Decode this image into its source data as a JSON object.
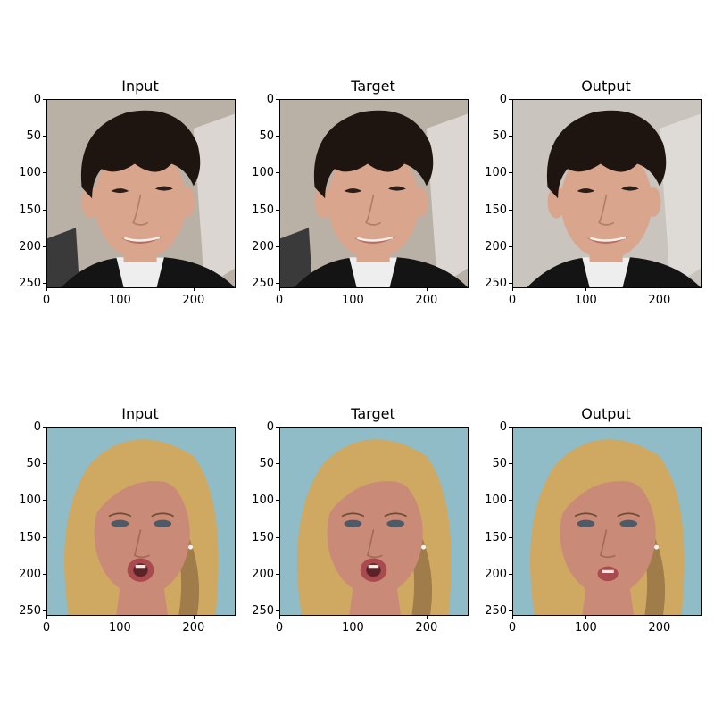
{
  "figure": {
    "rows": [
      {
        "subject": "boy",
        "panels": [
          {
            "title": "Input",
            "variant": "input"
          },
          {
            "title": "Target",
            "variant": "target"
          },
          {
            "title": "Output",
            "variant": "output"
          }
        ]
      },
      {
        "subject": "woman",
        "panels": [
          {
            "title": "Input",
            "variant": "input"
          },
          {
            "title": "Target",
            "variant": "target"
          },
          {
            "title": "Output",
            "variant": "output"
          }
        ]
      }
    ],
    "x_ticks": [
      "0",
      "100",
      "200"
    ],
    "y_ticks": [
      "0",
      "50",
      "100",
      "150",
      "200",
      "250"
    ],
    "image_extent": [
      0,
      256
    ]
  },
  "colors": {
    "boy_bg_input": "#b9b0a6",
    "boy_bg_output": "#c9c4bd",
    "boy_hair": "#1f1510",
    "boy_skin": "#d9a58c",
    "boy_lips": "#b86c62",
    "boy_jacket": "#141414",
    "boy_shirt": "#eeeeee",
    "woman_bg": "#8fbcc6",
    "woman_hair": "#cfa862",
    "woman_hair_dark": "#8a6a3e",
    "woman_skin": "#c98a77",
    "woman_lips": "#a84a4e"
  }
}
